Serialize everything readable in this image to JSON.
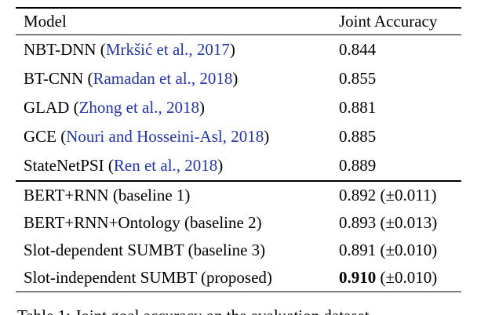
{
  "page": {
    "background": "#ffffff",
    "text_color": "#000000",
    "citation_color": "#2233b2"
  },
  "table": {
    "header": {
      "model": "Model",
      "accuracy": "Joint Accuracy"
    },
    "cited_rows": [
      {
        "pre": "NBT-DNN (",
        "cite": "Mrkšić et al., 2017",
        "post": ")",
        "acc": "0.844"
      },
      {
        "pre": "BT-CNN (",
        "cite": "Ramadan et al., 2018",
        "post": ")",
        "acc": "0.855"
      },
      {
        "pre": "GLAD (",
        "cite": "Zhong et al., 2018",
        "post": ")",
        "acc": "0.881"
      },
      {
        "pre": "GCE (",
        "cite": "Nouri and Hosseini-Asl, 2018",
        "post": ")",
        "acc": "0.885"
      },
      {
        "pre": "StateNetPSI (",
        "cite": "Ren et al., 2018",
        "post": ")",
        "acc": "0.889"
      }
    ],
    "baseline_rows": [
      {
        "model": "BERT+RNN (baseline 1)",
        "acc": "0.892 (±0.011)"
      },
      {
        "model": "BERT+RNN+Ontology (baseline 2)",
        "acc": "0.893 (±0.013)"
      },
      {
        "model": "Slot-dependent SUMBT (baseline 3)",
        "acc": "0.891 (±0.010)"
      },
      {
        "model": "Slot-independent SUMBT (proposed)",
        "acc_bold": "0.910",
        "acc_rest": " (±0.010)"
      }
    ]
  },
  "caption": "Table 1: Joint goal accuracy on the evaluation dataset"
}
